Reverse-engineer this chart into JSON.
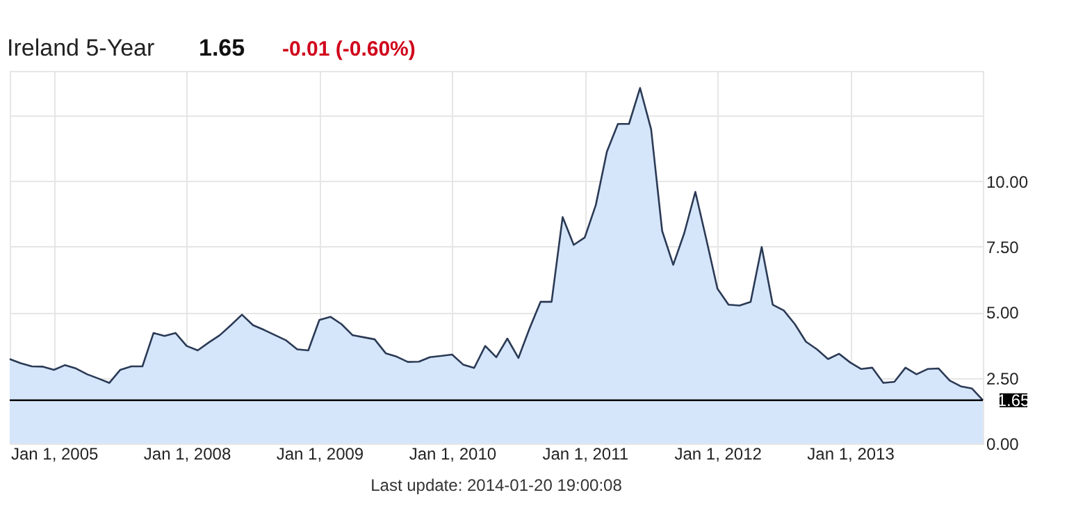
{
  "chart_data": {
    "type": "area",
    "title": "Ireland 5-Year",
    "annotations": [
      "1.65",
      "-0.01 (-0.60%)",
      "Last update: 2014-01-20 19:00:08"
    ],
    "categories": [
      null,
      null,
      null,
      null,
      "Jan 1, 2005",
      null,
      null,
      null,
      null,
      null,
      null,
      null,
      null,
      null,
      null,
      null,
      "Jan 1, 2008",
      null,
      null,
      null,
      null,
      null,
      null,
      null,
      null,
      null,
      null,
      null,
      "Jan 1, 2009",
      null,
      null,
      null,
      null,
      null,
      null,
      null,
      null,
      null,
      null,
      null,
      "Jan 1, 2010",
      null,
      null,
      null,
      null,
      null,
      null,
      null,
      null,
      null,
      null,
      null,
      "Jan 1, 2011",
      null,
      null,
      null,
      null,
      null,
      null,
      null,
      null,
      null,
      null,
      null,
      "Jan 1, 2012",
      null,
      null,
      null,
      null,
      null,
      null,
      null,
      null,
      null,
      null,
      null,
      "Jan 1, 2013",
      null,
      null,
      null,
      null,
      null,
      null,
      null,
      null,
      null,
      null,
      null,
      null
    ],
    "series": [
      {
        "color": "#2b3a55",
        "values": [
          3.22,
          3.06,
          2.94,
          2.93,
          2.81,
          2.99,
          2.86,
          2.64,
          2.48,
          2.31,
          2.81,
          2.94,
          2.94,
          4.21,
          4.1,
          4.21,
          3.72,
          3.55,
          3.85,
          4.13,
          4.51,
          4.91,
          4.51,
          4.33,
          4.13,
          3.93,
          3.59,
          3.55,
          4.71,
          4.83,
          4.55,
          4.13,
          4.05,
          3.97,
          3.44,
          3.31,
          3.11,
          3.12,
          3.29,
          3.34,
          3.39,
          3.01,
          2.88,
          3.72,
          3.29,
          4.0,
          3.26,
          4.38,
          5.4,
          5.4,
          8.63,
          7.57,
          7.85,
          9.09,
          11.12,
          12.18,
          12.18,
          13.55,
          11.98,
          8.1,
          6.81,
          8.02,
          9.59,
          7.77,
          5.9,
          5.29,
          5.26,
          5.4,
          7.49,
          5.29,
          5.07,
          4.55,
          3.88,
          3.59,
          3.22,
          3.42,
          3.09,
          2.84,
          2.89,
          2.31,
          2.35,
          2.89,
          2.64,
          2.84,
          2.86,
          2.4,
          2.18,
          2.1,
          1.65
        ]
      }
    ],
    "ylim": [
      0,
      14.2
    ],
    "yticks": [
      {
        "value": 0,
        "label": "0.00"
      },
      {
        "value": 2.5,
        "label": "2.50"
      },
      {
        "value": 5,
        "label": "5.00"
      },
      {
        "value": 7.5,
        "label": "7.50"
      },
      {
        "value": 10,
        "label": "10.00"
      },
      {
        "value": 12.5,
        "label": null
      }
    ],
    "ref_lines": [
      {
        "axis": "y",
        "value": 1.65,
        "label": "1.65",
        "color": "#000000"
      }
    ],
    "grid": true
  }
}
